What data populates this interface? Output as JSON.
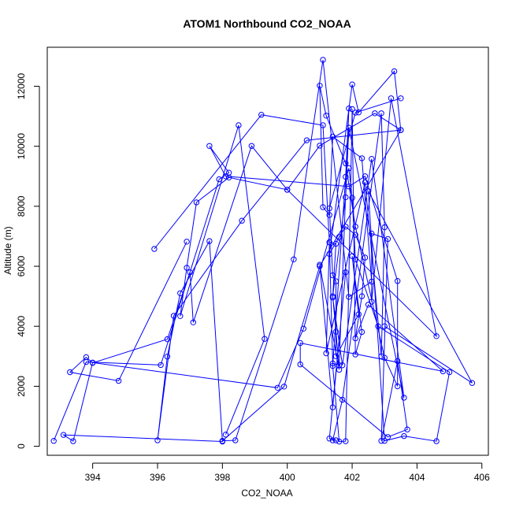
{
  "chart_data": {
    "type": "scatter",
    "title": "ATOM1 Northbound CO2_NOAA",
    "xlabel": "CO2_NOAA",
    "ylabel": "Altitude (m)",
    "xlim": [
      392.6,
      406.2
    ],
    "ylim": [
      -300,
      13300
    ],
    "x_ticks": [
      394,
      396,
      398,
      400,
      402,
      404,
      406
    ],
    "y_ticks": [
      0,
      2000,
      4000,
      6000,
      8000,
      10000,
      12000
    ],
    "grid": false,
    "legend": "none",
    "style": {
      "series_color": "#0000ff",
      "mark": "open circle connected by lines"
    },
    "series": [
      {
        "x": [
          395.9,
          399.2,
          401.1,
          401.3,
          401.5,
          401.4,
          401.7,
          402.6,
          403.6,
          401.9,
          401.8,
          401.4,
          401.5,
          401.6,
          401.0,
          401.4,
          401.8,
          401.3,
          401.5,
          401.4,
          401.7,
          402.9,
          403.0,
          402.9,
          402.4,
          401.2,
          401.3,
          401.4,
          401.6,
          401.9,
          401.8,
          401.4,
          401.6,
          401.8,
          402.0,
          402.1,
          402.3,
          402.0,
          402.2,
          401.5,
          401.5,
          401.4,
          401.3,
          402.1,
          403.5
        ],
        "y": [
          6580,
          11050,
          10700,
          6800,
          6750,
          4960,
          2700,
          9580,
          1620,
          10620,
          8300,
          5000,
          3820,
          2550,
          6050,
          1300,
          5800,
          260,
          200,
          200,
          1550,
          11100,
          7300,
          3000,
          8800,
          3100,
          6800,
          2760,
          2700,
          11260,
          8980,
          2680,
          160,
          170,
          11240,
          3060,
          3810,
          6340,
          4400,
          3000,
          5500,
          5700,
          7930,
          11120,
          11600
        ]
      },
      {
        "x": [
          396.9,
          394.8,
          393.3,
          393.8,
          394.0,
          396.3,
          397.0,
          397.1,
          398.9,
          400.0,
          401.0,
          402.7,
          403.5,
          403.3,
          402.2,
          402.0,
          401.3,
          401.6,
          401.8,
          402.1,
          402.4,
          402.3,
          402.1,
          402.5,
          404.8,
          400.4,
          400.4,
          403.1,
          403.7,
          403.4,
          402.9,
          403.1,
          402.6,
          402.6,
          403.2,
          404.6,
          400.0,
          398.2,
          397.2,
          396.9,
          396.7,
          398.5,
          399.3,
          398.1
        ],
        "y": [
          6820,
          2180,
          2470,
          2970,
          2780,
          3570,
          5800,
          4130,
          10010,
          8550,
          10020,
          11100,
          10540,
          12500,
          11130,
          12060,
          6410,
          6980,
          7320,
          7050,
          6290,
          5000,
          3600,
          4720,
          2500,
          3440,
          2730,
          310,
          560,
          2840,
          180,
          6910,
          7090,
          4820,
          11600,
          3670,
          8550,
          8960,
          8130,
          5950,
          4340,
          10700,
          3580,
          390
        ]
      },
      {
        "x": [
          392.8,
          393.8,
          396.1,
          397.9,
          398.2,
          397.6,
          398.1,
          401.9,
          402.4,
          403.4,
          403.4,
          403.0,
          402.1,
          401.8,
          401.2,
          401.0,
          401.1,
          401.3,
          401.4,
          402.3,
          402.6,
          401.9,
          401.1,
          400.2,
          398.4,
          398.0,
          399.9,
          401.0,
          403.5,
          400.6,
          398.6,
          396.5,
          396.0,
          396.3,
          396.7,
          397.6,
          398.0,
          393.1,
          393.4,
          394.0,
          399.7,
          400.5,
          401.9,
          402.0,
          402.1,
          402.8,
          405.0,
          404.6,
          403.6,
          403.0,
          402.5,
          405.7,
          403.0
        ],
        "y": [
          180,
          2810,
          2710,
          8900,
          9120,
          10010,
          9000,
          8660,
          9000,
          5510,
          2000,
          2950,
          7320,
          9430,
          11020,
          12020,
          7970,
          7710,
          10320,
          9600,
          5490,
          4980,
          12880,
          6230,
          200,
          180,
          1990,
          6000,
          10540,
          10200,
          7520,
          4350,
          200,
          2990,
          5100,
          6840,
          160,
          380,
          170,
          2790,
          1950,
          3920,
          9270,
          8280,
          6230,
          4000,
          2470,
          170,
          340,
          180,
          8500,
          2110,
          4000
        ]
      }
    ]
  }
}
